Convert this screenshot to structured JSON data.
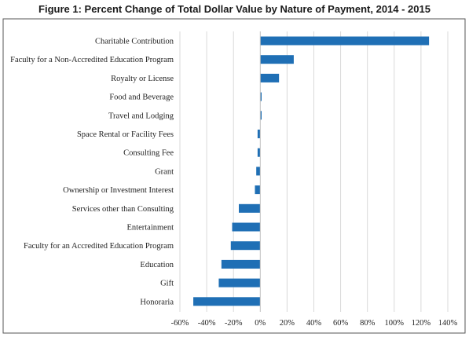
{
  "chart_data": {
    "type": "bar",
    "orientation": "horizontal",
    "title": "Figure 1: Percent Change of Total Dollar Value by Nature of Payment, 2014 - 2015",
    "xlabel": "",
    "ylabel": "",
    "categories": [
      "Charitable Contribution",
      "Faculty for a Non-Accredited Education Program",
      "Royalty or License",
      "Food and Beverage",
      "Travel and Lodging",
      "Space Rental or Facility Fees",
      "Consulting Fee",
      "Grant",
      "Ownership or Investment Interest",
      "Services other than Consulting",
      "Entertainment",
      "Faculty for an Accredited Education Program",
      "Education",
      "Gift",
      "Honoraria"
    ],
    "values": [
      126,
      25,
      14,
      1,
      1,
      -2,
      -2,
      -3,
      -4,
      -16,
      -21,
      -22,
      -29,
      -31,
      -50
    ],
    "xlim": [
      -60,
      140
    ],
    "xticks": [
      -60,
      -40,
      -20,
      0,
      20,
      40,
      60,
      80,
      100,
      120,
      140
    ],
    "tick_format": "percent",
    "grid": true,
    "legend": "none",
    "colors": {
      "bar": "#1f6fb5",
      "grid": "#d9d9d9",
      "axis": "#bfbfbf",
      "frame": "#555555"
    }
  }
}
